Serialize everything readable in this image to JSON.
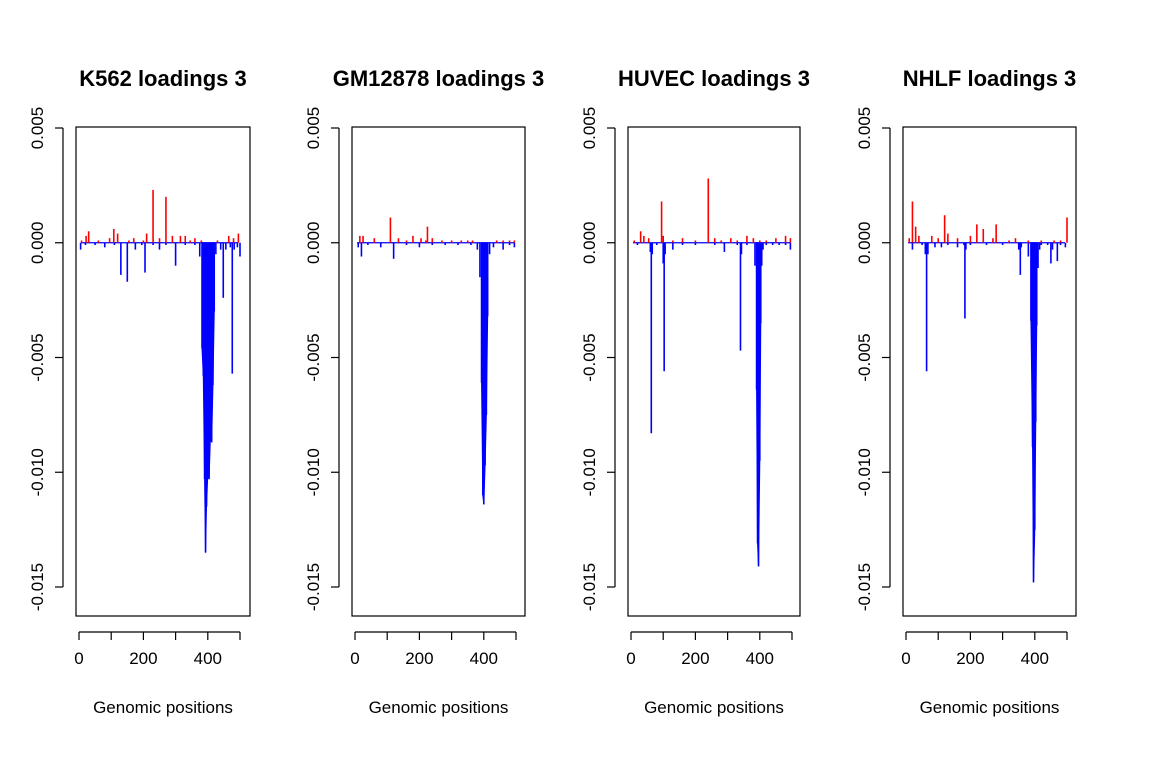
{
  "colors": {
    "positive": "#ff0000",
    "negative": "#0000ff",
    "axis": "#000000"
  },
  "chart_data": [
    {
      "type": "line",
      "title": "K562 loadings 3",
      "xlabel": "Genomic positions",
      "ylabel": "",
      "xlim": [
        0,
        500
      ],
      "ylim": [
        -0.015,
        0.005
      ],
      "xticks": [
        0,
        100,
        200,
        300,
        400,
        500
      ],
      "xtick_labels": [
        "0",
        "",
        "200",
        "",
        "400",
        ""
      ],
      "yticks": [
        0.005,
        0.0,
        -0.005,
        -0.01,
        -0.015
      ],
      "ytick_labels": [
        "0.005",
        "0.000",
        "-0.005",
        "-0.010",
        "-0.015"
      ],
      "series": [
        {
          "color": "#ff0000",
          "x": [
            8,
            22,
            30,
            60,
            95,
            108,
            120,
            155,
            170,
            200,
            210,
            230,
            250,
            270,
            290,
            315,
            330,
            345,
            360,
            380,
            430,
            465,
            480,
            495
          ],
          "values": [
            0.0001,
            0.0003,
            0.0005,
            0.0001,
            0.0002,
            0.0006,
            0.0004,
            0.0001,
            0.0002,
            0.0001,
            0.0004,
            0.0023,
            0.0002,
            0.002,
            0.0003,
            0.0003,
            0.0003,
            0.0001,
            0.0002,
            0.0001,
            0.0001,
            0.0003,
            0.0002,
            0.0004
          ]
        },
        {
          "color": "#0000ff",
          "x": [
            5,
            20,
            50,
            80,
            110,
            130,
            150,
            175,
            195,
            205,
            230,
            250,
            270,
            300,
            330,
            360,
            375,
            382,
            386,
            390,
            393,
            396,
            400,
            404,
            408,
            412,
            416,
            420,
            425,
            440,
            448,
            456,
            470,
            476,
            482,
            492,
            500
          ],
          "values": [
            -0.0003,
            -0.0001,
            -0.0001,
            -0.0002,
            -0.0001,
            -0.0014,
            -0.0017,
            -0.0003,
            -0.0001,
            -0.0013,
            -0.0001,
            -0.0003,
            -0.0001,
            -0.001,
            -0.0001,
            -0.0001,
            -0.0006,
            -0.0046,
            -0.0058,
            -0.0103,
            -0.0135,
            -0.0115,
            -0.0101,
            -0.0103,
            -0.0085,
            -0.0087,
            -0.0062,
            -0.003,
            -0.0005,
            -0.0003,
            -0.0024,
            -0.0003,
            -0.0002,
            -0.0057,
            -0.0003,
            -0.0002,
            -0.0006
          ]
        }
      ]
    },
    {
      "type": "line",
      "title": "GM12878 loadings 3",
      "xlabel": "Genomic positions",
      "ylabel": "",
      "xlim": [
        0,
        500
      ],
      "ylim": [
        -0.015,
        0.005
      ],
      "xticks": [
        0,
        100,
        200,
        300,
        400,
        500
      ],
      "xtick_labels": [
        "0",
        "",
        "200",
        "",
        "400",
        ""
      ],
      "yticks": [
        0.005,
        0.0,
        -0.005,
        -0.01,
        -0.015
      ],
      "ytick_labels": [
        "0.005",
        "0.000",
        "-0.005",
        "-0.010",
        "-0.015"
      ],
      "series": [
        {
          "color": "#ff0000",
          "x": [
            15,
            25,
            60,
            110,
            135,
            160,
            180,
            205,
            220,
            225,
            240,
            270,
            300,
            330,
            350,
            365,
            440,
            460,
            480,
            495
          ],
          "values": [
            0.0003,
            0.0003,
            0.0002,
            0.0011,
            0.0002,
            0.0001,
            0.0003,
            0.0002,
            0.0001,
            0.0007,
            0.0002,
            0.0001,
            0.0001,
            0.0001,
            0.0001,
            0.0001,
            0.0001,
            0.0001,
            0.0001,
            0.0001
          ]
        },
        {
          "color": "#0000ff",
          "x": [
            10,
            20,
            40,
            80,
            120,
            160,
            200,
            240,
            280,
            320,
            360,
            380,
            388,
            393,
            397,
            400,
            404,
            408,
            412,
            418,
            430,
            460,
            480,
            495
          ],
          "values": [
            -0.0002,
            -0.0006,
            -0.0001,
            -0.0002,
            -0.0007,
            -0.0001,
            -0.0002,
            -0.0001,
            -0.0001,
            -0.0001,
            -0.0001,
            -0.0003,
            -0.0015,
            -0.0061,
            -0.011,
            -0.0114,
            -0.0097,
            -0.0075,
            -0.0032,
            -0.0005,
            -0.0002,
            -0.0003,
            -0.0001,
            -0.0002
          ]
        }
      ]
    },
    {
      "type": "line",
      "title": "HUVEC loadings 3",
      "xlabel": "Genomic positions",
      "ylabel": "",
      "xlim": [
        0,
        500
      ],
      "ylim": [
        -0.015,
        0.005
      ],
      "xticks": [
        0,
        100,
        200,
        300,
        400,
        500
      ],
      "xtick_labels": [
        "0",
        "",
        "200",
        "",
        "400",
        ""
      ],
      "yticks": [
        0.005,
        0.0,
        -0.005,
        -0.01,
        -0.015
      ],
      "ytick_labels": [
        "0.005",
        "0.000",
        "-0.005",
        "-0.010",
        "-0.015"
      ],
      "series": [
        {
          "color": "#ff0000",
          "x": [
            10,
            30,
            40,
            55,
            95,
            100,
            130,
            160,
            200,
            240,
            260,
            280,
            310,
            330,
            360,
            380,
            400,
            420,
            450,
            480,
            495
          ],
          "values": [
            0.0001,
            0.0005,
            0.0003,
            0.0002,
            0.0018,
            0.0003,
            0.0001,
            0.0002,
            0.0001,
            0.0028,
            0.0002,
            0.0001,
            0.0002,
            0.0001,
            0.0003,
            0.0002,
            0.0001,
            0.0001,
            0.0002,
            0.0003,
            0.0002
          ]
        },
        {
          "color": "#0000ff",
          "x": [
            20,
            60,
            63,
            66,
            80,
            100,
            103,
            106,
            130,
            160,
            200,
            260,
            290,
            330,
            340,
            343,
            360,
            385,
            390,
            393,
            396,
            400,
            403,
            406,
            410,
            420,
            440,
            460,
            480,
            495
          ],
          "values": [
            -0.0001,
            -0.0004,
            -0.0083,
            -0.0005,
            -0.0001,
            -0.0009,
            -0.0056,
            -0.0005,
            -0.0003,
            -0.0001,
            -0.0001,
            -0.0001,
            -0.0004,
            -0.0001,
            -0.0047,
            -0.0005,
            -0.0001,
            -0.001,
            -0.0064,
            -0.0131,
            -0.0141,
            -0.0095,
            -0.0035,
            -0.001,
            -0.0003,
            -0.0001,
            -0.0001,
            -0.0001,
            -0.0001,
            -0.0003
          ]
        }
      ]
    },
    {
      "type": "line",
      "title": "NHLF loadings 3",
      "xlabel": "Genomic positions",
      "ylabel": "",
      "xlim": [
        0,
        500
      ],
      "ylim": [
        -0.015,
        0.005
      ],
      "xticks": [
        0,
        100,
        200,
        300,
        400,
        500
      ],
      "xtick_labels": [
        "0",
        "",
        "200",
        "",
        "400",
        ""
      ],
      "yticks": [
        0.005,
        0.0,
        -0.005,
        -0.01,
        -0.015
      ],
      "ytick_labels": [
        "0.005",
        "0.000",
        "-0.005",
        "-0.010",
        "-0.015"
      ],
      "series": [
        {
          "color": "#ff0000",
          "x": [
            10,
            20,
            30,
            40,
            80,
            100,
            120,
            130,
            160,
            200,
            220,
            240,
            270,
            280,
            320,
            340,
            380,
            420,
            460,
            480,
            500
          ],
          "values": [
            0.0002,
            0.0018,
            0.0007,
            0.0003,
            0.0003,
            0.0002,
            0.0012,
            0.0004,
            0.0002,
            0.0003,
            0.0008,
            0.0006,
            0.0002,
            0.0008,
            0.0001,
            0.0002,
            0.0001,
            0.0001,
            0.0001,
            0.0001,
            0.0011
          ]
        },
        {
          "color": "#0000ff",
          "x": [
            20,
            50,
            60,
            64,
            68,
            90,
            110,
            130,
            160,
            180,
            183,
            186,
            200,
            250,
            300,
            350,
            355,
            358,
            380,
            388,
            393,
            396,
            400,
            403,
            406,
            410,
            415,
            420,
            440,
            450,
            455,
            470,
            480,
            495
          ],
          "values": [
            -0.0003,
            -0.0001,
            -0.0005,
            -0.0056,
            -0.0005,
            -0.0002,
            -0.0002,
            -0.0001,
            -0.0002,
            -0.0001,
            -0.0033,
            -0.0003,
            -0.0001,
            -0.0001,
            -0.0001,
            -0.0003,
            -0.0014,
            -0.0002,
            -0.0006,
            -0.0034,
            -0.0089,
            -0.0148,
            -0.0125,
            -0.0078,
            -0.0036,
            -0.0011,
            -0.0003,
            -0.0001,
            -0.0001,
            -0.0009,
            -0.0003,
            -0.0008,
            -0.0001,
            -0.0002
          ]
        }
      ]
    }
  ]
}
